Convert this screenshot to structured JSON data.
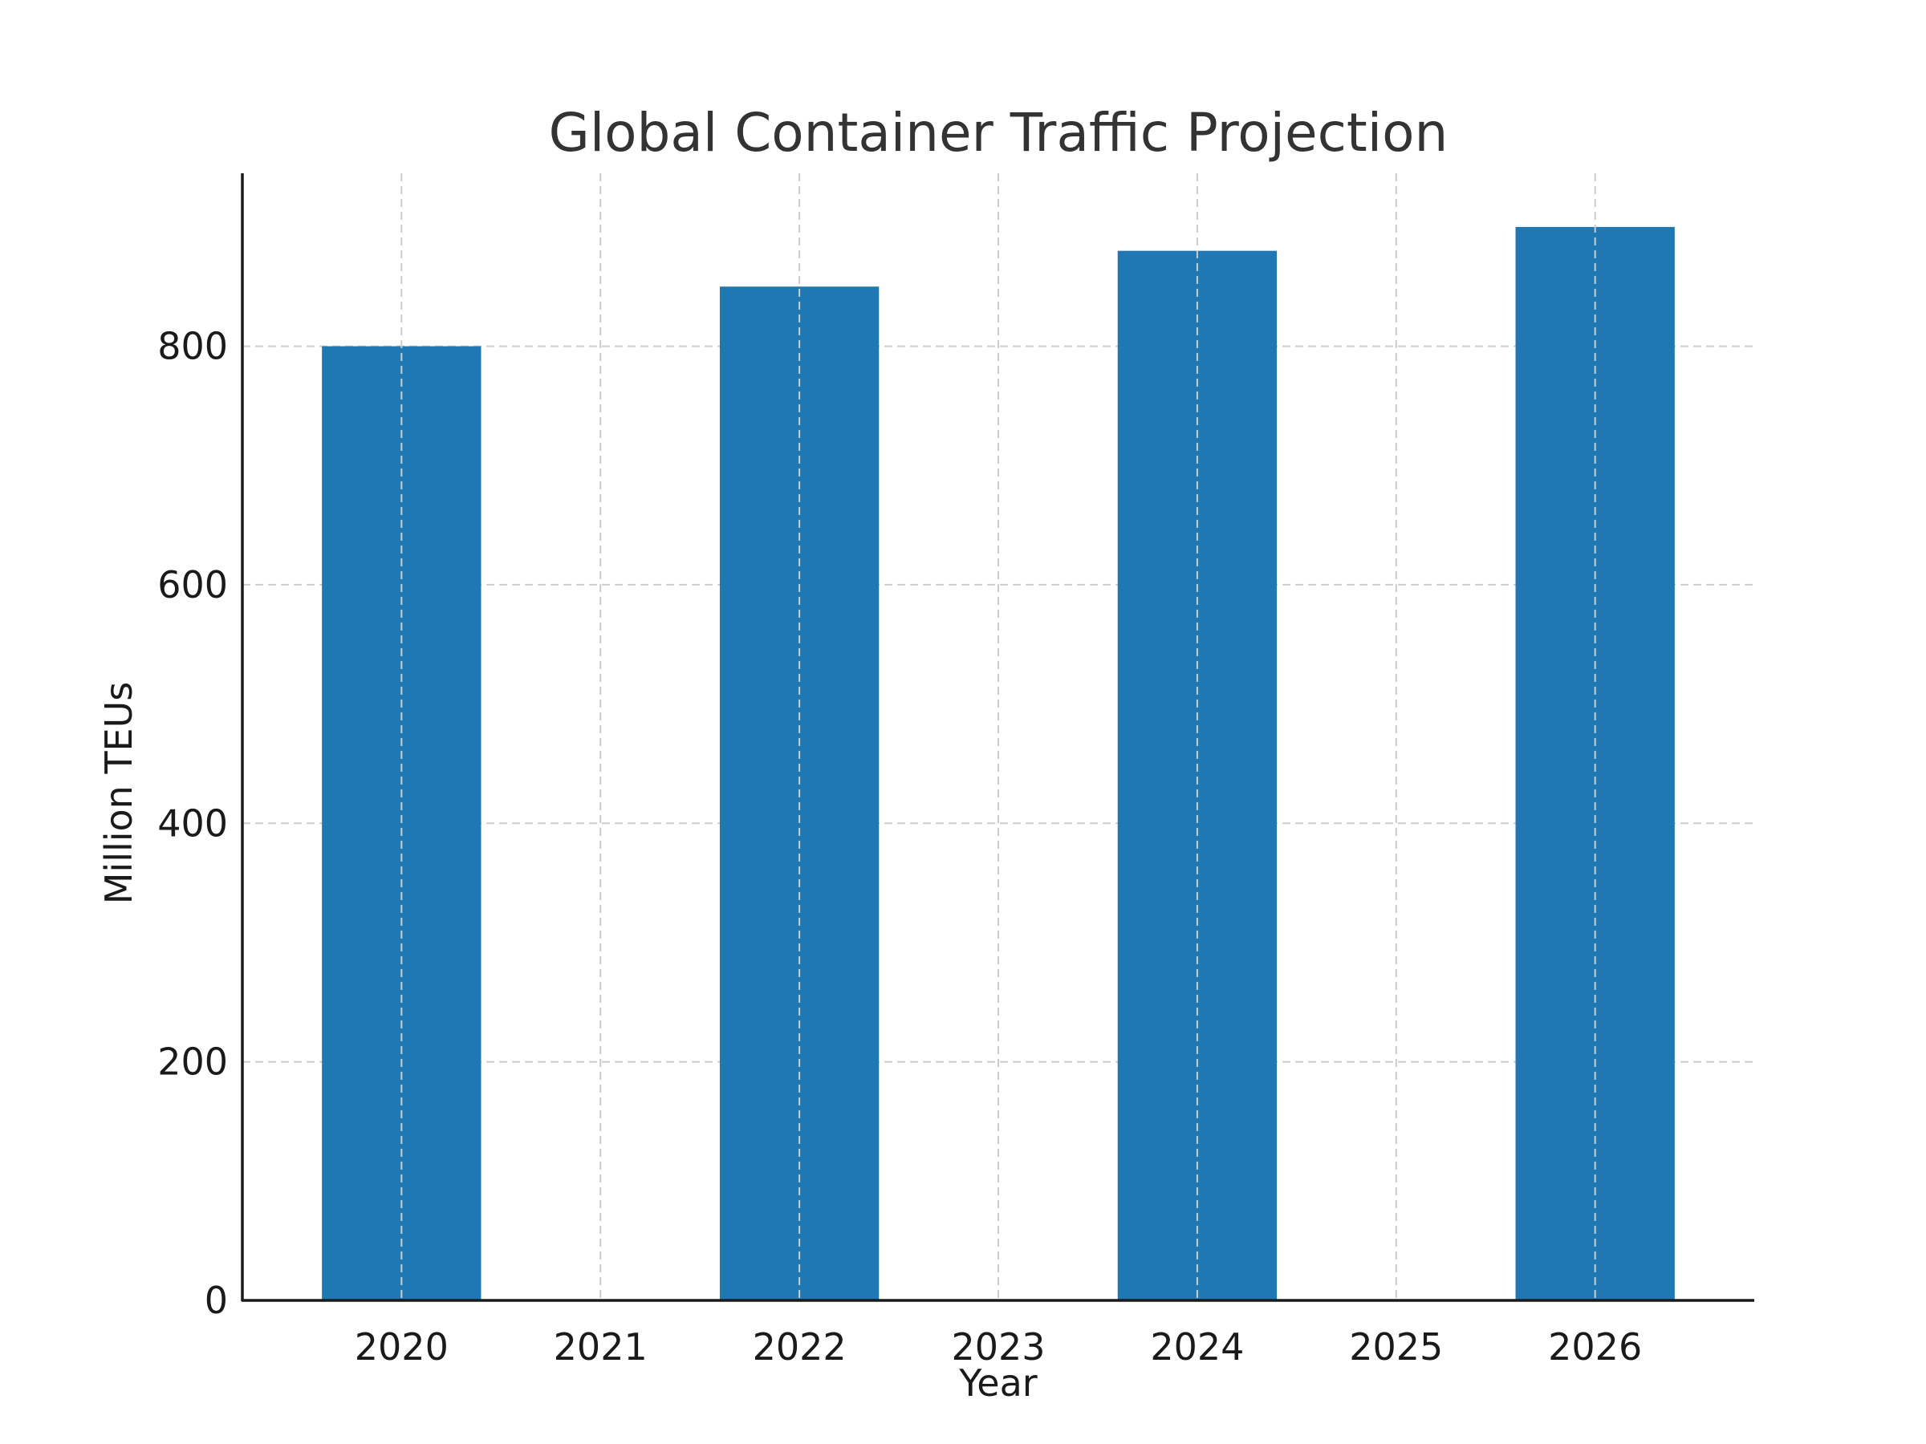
{
  "chart_data": {
    "type": "bar",
    "title": "Global Container Traffic Projection",
    "xlabel": "Year",
    "ylabel": "Million TEUs",
    "categories": [
      "2020",
      "2021",
      "2022",
      "2023",
      "2024",
      "2025",
      "2026"
    ],
    "bars": [
      {
        "x": 2020,
        "value": 800
      },
      {
        "x": 2022,
        "value": 850
      },
      {
        "x": 2024,
        "value": 880
      },
      {
        "x": 2026,
        "value": 900
      }
    ],
    "xlim": [
      2019.2,
      2026.8
    ],
    "ylim": [
      0,
      945
    ],
    "yticks": [
      0,
      200,
      400,
      600,
      800
    ],
    "bar_width": 0.8,
    "grid": true,
    "bar_color": "#1f77b4",
    "grid_color": "#cccccc",
    "text_color": "#1a1a1a",
    "title_color": "#333333"
  }
}
